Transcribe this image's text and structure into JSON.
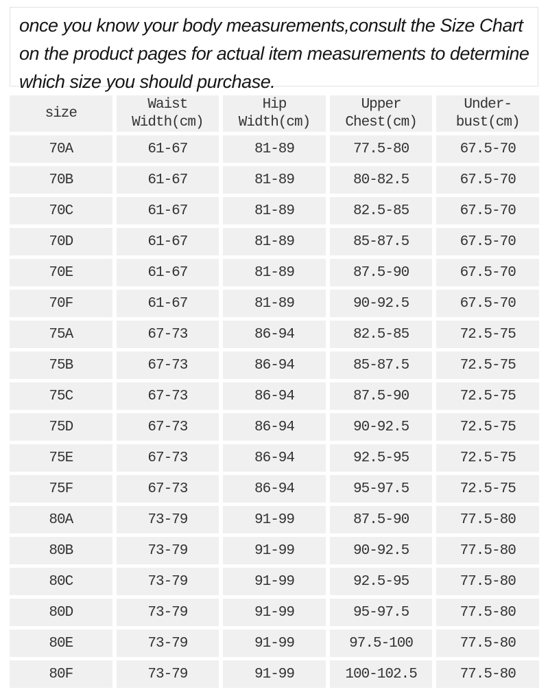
{
  "intro": {
    "text": "once you know your body measurements,consult the Size Chart on the product pages for actual item measurements to determine which size you should purchase."
  },
  "colors": {
    "cell_background": "#f0f0f0",
    "cell_text": "#333333",
    "intro_text": "#161616",
    "intro_border": "#e2e2e2",
    "page_background": "#ffffff"
  },
  "chart_data": {
    "type": "table",
    "note": "once you know your body measurements,consult the Size Chart on the product pages for actual item measurements to determine which size you should purchase.",
    "columns": [
      {
        "key": "size",
        "line1": "size",
        "line2": ""
      },
      {
        "key": "waist",
        "line1": "Waist",
        "line2": "Width(cm)"
      },
      {
        "key": "hip",
        "line1": "Hip",
        "line2": "Width(cm)"
      },
      {
        "key": "upper_chest",
        "line1": "Upper",
        "line2": "Chest(cm)"
      },
      {
        "key": "underbust",
        "line1": "Under-",
        "line2": "bust(cm)"
      }
    ],
    "rows": [
      {
        "size": "70A",
        "waist": "61-67",
        "hip": "81-89",
        "upper_chest": "77.5-80",
        "underbust": "67.5-70"
      },
      {
        "size": "70B",
        "waist": "61-67",
        "hip": "81-89",
        "upper_chest": "80-82.5",
        "underbust": "67.5-70"
      },
      {
        "size": "70C",
        "waist": "61-67",
        "hip": "81-89",
        "upper_chest": "82.5-85",
        "underbust": "67.5-70"
      },
      {
        "size": "70D",
        "waist": "61-67",
        "hip": "81-89",
        "upper_chest": "85-87.5",
        "underbust": "67.5-70"
      },
      {
        "size": "70E",
        "waist": "61-67",
        "hip": "81-89",
        "upper_chest": "87.5-90",
        "underbust": "67.5-70"
      },
      {
        "size": "70F",
        "waist": "61-67",
        "hip": "81-89",
        "upper_chest": "90-92.5",
        "underbust": "67.5-70"
      },
      {
        "size": "75A",
        "waist": "67-73",
        "hip": "86-94",
        "upper_chest": "82.5-85",
        "underbust": "72.5-75"
      },
      {
        "size": "75B",
        "waist": "67-73",
        "hip": "86-94",
        "upper_chest": "85-87.5",
        "underbust": "72.5-75"
      },
      {
        "size": "75C",
        "waist": "67-73",
        "hip": "86-94",
        "upper_chest": "87.5-90",
        "underbust": "72.5-75"
      },
      {
        "size": "75D",
        "waist": "67-73",
        "hip": "86-94",
        "upper_chest": "90-92.5",
        "underbust": "72.5-75"
      },
      {
        "size": "75E",
        "waist": "67-73",
        "hip": "86-94",
        "upper_chest": "92.5-95",
        "underbust": "72.5-75"
      },
      {
        "size": "75F",
        "waist": "67-73",
        "hip": "86-94",
        "upper_chest": "95-97.5",
        "underbust": "72.5-75"
      },
      {
        "size": "80A",
        "waist": "73-79",
        "hip": "91-99",
        "upper_chest": "87.5-90",
        "underbust": "77.5-80"
      },
      {
        "size": "80B",
        "waist": "73-79",
        "hip": "91-99",
        "upper_chest": "90-92.5",
        "underbust": "77.5-80"
      },
      {
        "size": "80C",
        "waist": "73-79",
        "hip": "91-99",
        "upper_chest": "92.5-95",
        "underbust": "77.5-80"
      },
      {
        "size": "80D",
        "waist": "73-79",
        "hip": "91-99",
        "upper_chest": "95-97.5",
        "underbust": "77.5-80"
      },
      {
        "size": "80E",
        "waist": "73-79",
        "hip": "91-99",
        "upper_chest": "97.5-100",
        "underbust": "77.5-80"
      },
      {
        "size": "80F",
        "waist": "73-79",
        "hip": "91-99",
        "upper_chest": "100-102.5",
        "underbust": "77.5-80"
      }
    ]
  }
}
